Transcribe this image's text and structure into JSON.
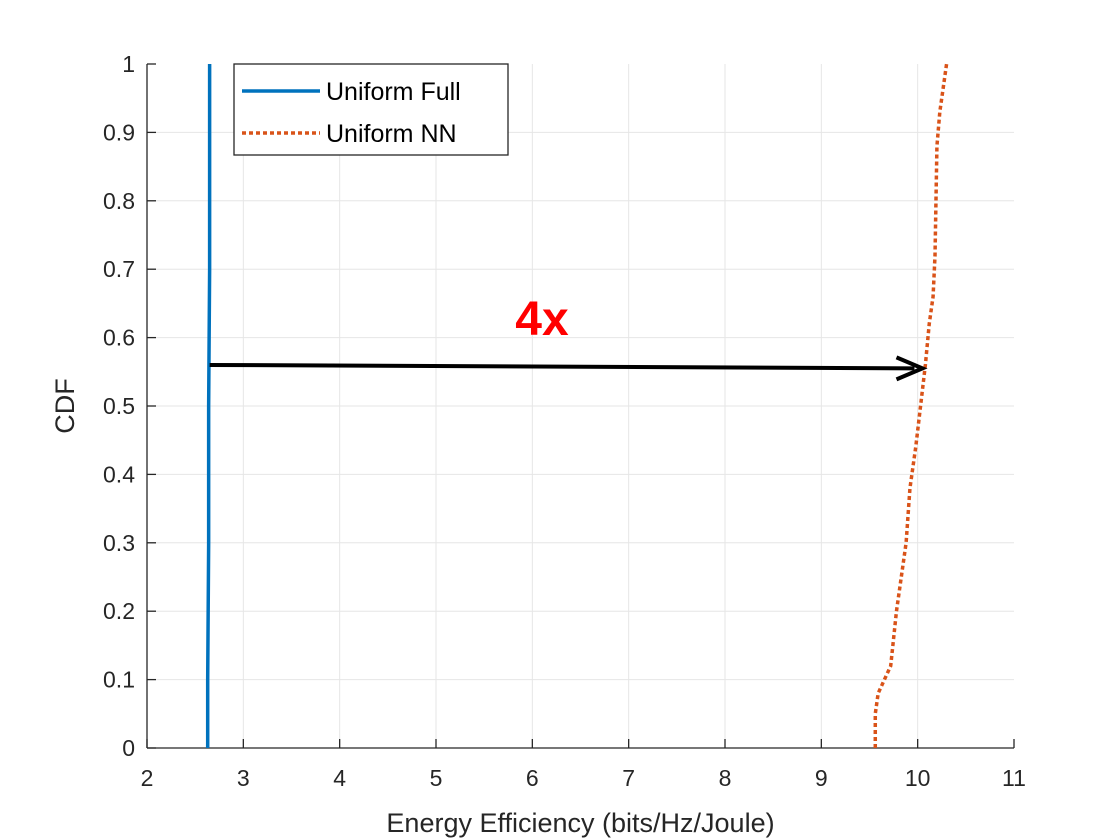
{
  "chart_data": {
    "type": "line",
    "title": "",
    "xlabel": "Energy Efficiency (bits/Hz/Joule)",
    "ylabel": "CDF",
    "xlim": [
      2,
      11
    ],
    "ylim": [
      0,
      1
    ],
    "xticks": [
      2,
      3,
      4,
      5,
      6,
      7,
      8,
      9,
      10,
      11
    ],
    "yticks": [
      0,
      0.1,
      0.2,
      0.3,
      0.4,
      0.5,
      0.6,
      0.7,
      0.8,
      0.9,
      1
    ],
    "xtick_labels": [
      "2",
      "3",
      "4",
      "5",
      "6",
      "7",
      "8",
      "9",
      "10",
      "11"
    ],
    "ytick_labels": [
      "0",
      "0.1",
      "0.2",
      "0.3",
      "0.4",
      "0.5",
      "0.6",
      "0.7",
      "0.8",
      "0.9",
      "1"
    ],
    "grid": true,
    "legend_position": "top-left",
    "series": [
      {
        "name": "Uniform Full",
        "color": "#0072BD",
        "style": "solid",
        "x": [
          2.63,
          2.63,
          2.64,
          2.64,
          2.65,
          2.65,
          2.65
        ],
        "y": [
          0,
          0.1,
          0.3,
          0.5,
          0.7,
          0.9,
          1.0
        ]
      },
      {
        "name": "Uniform NN",
        "color": "#D95319",
        "style": "dotted",
        "x": [
          9.56,
          9.56,
          9.59,
          9.72,
          9.78,
          9.88,
          9.92,
          9.98,
          10.03,
          10.08,
          10.12,
          10.16,
          10.18,
          10.19,
          10.2,
          10.23,
          10.27,
          10.3
        ],
        "y": [
          0,
          0.05,
          0.08,
          0.12,
          0.2,
          0.3,
          0.38,
          0.44,
          0.5,
          0.56,
          0.62,
          0.66,
          0.72,
          0.8,
          0.88,
          0.93,
          0.97,
          1.0
        ]
      }
    ],
    "annotations": [
      {
        "text": "4x",
        "color": "#FF0000",
        "x": 6.1,
        "y": 0.63,
        "arrow": {
          "from": [
            2.65,
            0.56
          ],
          "to": [
            10.05,
            0.555
          ],
          "color": "#000000"
        }
      }
    ]
  }
}
